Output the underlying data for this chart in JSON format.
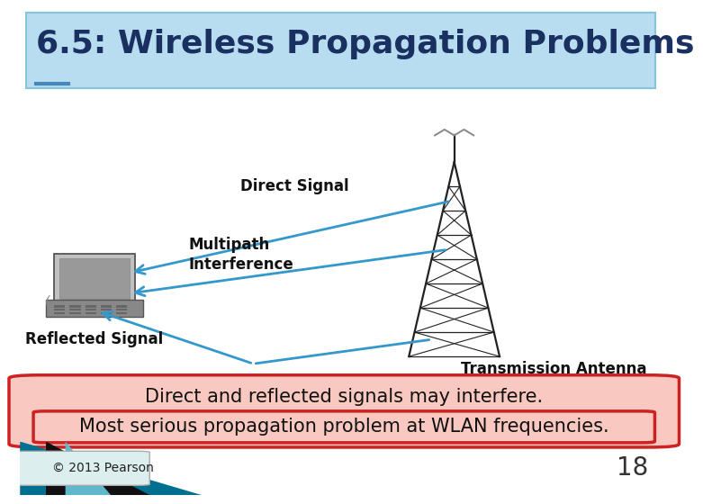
{
  "title": "6.5: Wireless Propagation Problems",
  "title_color": "#1a3060",
  "title_bg_top": "#b8ddf0",
  "title_bg_bottom": "#d8eef8",
  "title_fontsize": 26,
  "body_bg_color": "#ffffff",
  "footer_bg_color": "#ffffff",
  "summary_line1": "Direct and reflected signals may interfere.",
  "summary_line2": "Most serious propagation problem at WLAN frequencies.",
  "summary_bg": "#f9c8c0",
  "summary_border": "#cc2222",
  "summary_fontsize": 15,
  "footer_text": "© 2013 Pearson",
  "page_number": "18",
  "footer_fontsize": 10,
  "label_direct": "Direct Signal",
  "label_multipath": "Multipath\nInterference",
  "label_reflected": "Reflected Signal",
  "label_antenna": "Transmission Antenna",
  "arrow_color": "#3399cc",
  "label_fontsize": 12,
  "tower_color": "#222222"
}
